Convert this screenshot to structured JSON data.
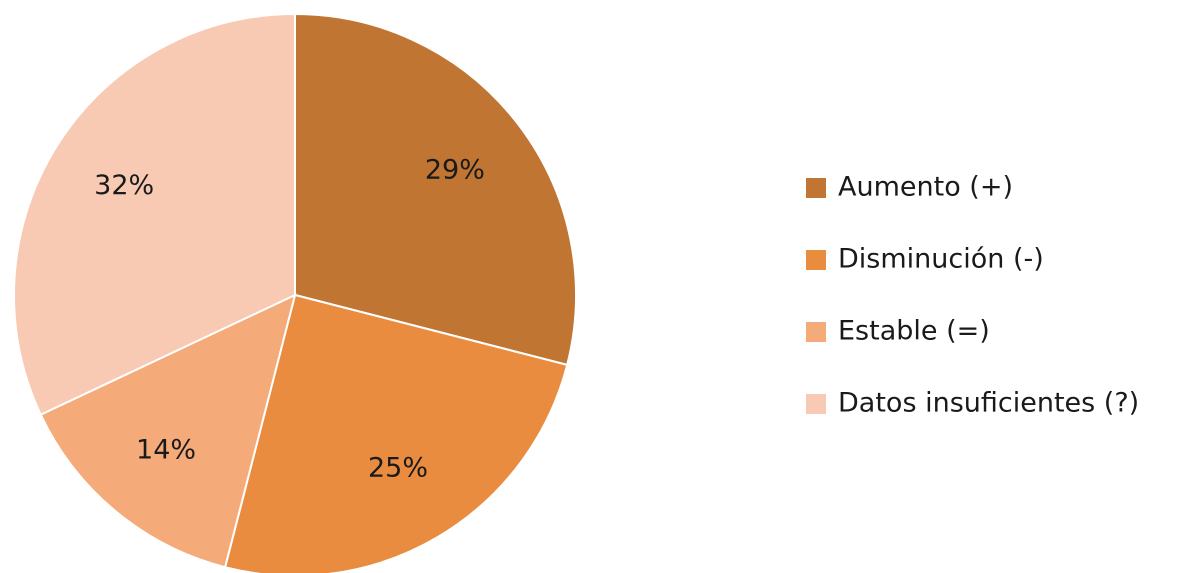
{
  "chart_data": {
    "type": "pie",
    "categories": [
      "Aumento (+)",
      "Disminución (-)",
      "Estable (=)",
      "Datos insuficientes (?)"
    ],
    "values": [
      29,
      25,
      14,
      32
    ],
    "value_labels": [
      "29%",
      "25%",
      "14%",
      "32%"
    ],
    "colors": [
      "#C07533",
      "#E98C3F",
      "#F5AA7A",
      "#F8CAB4"
    ],
    "legend": "right"
  }
}
